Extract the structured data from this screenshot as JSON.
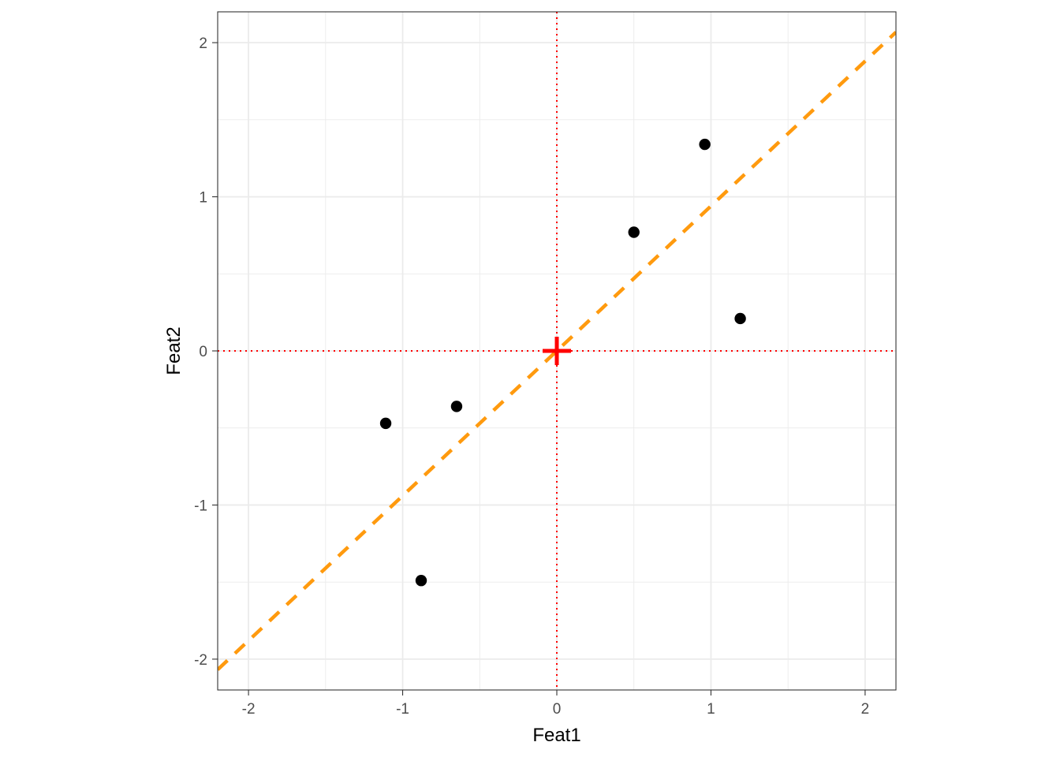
{
  "chart_data": {
    "type": "scatter",
    "title": "",
    "xlabel": "Feat1",
    "ylabel": "Feat2",
    "xlim": [
      -2.2,
      2.2
    ],
    "ylim": [
      -2.2,
      2.2
    ],
    "x_ticks": [
      -2,
      -1,
      0,
      1,
      2
    ],
    "y_ticks": [
      -2,
      -1,
      0,
      1,
      2
    ],
    "x_tick_labels": [
      "-2",
      "-1",
      "0",
      "1",
      "2"
    ],
    "y_tick_labels": [
      "-2",
      "-1",
      "0",
      "1",
      "2"
    ],
    "grid": true,
    "points": [
      {
        "x": -1.11,
        "y": -0.47
      },
      {
        "x": -0.65,
        "y": -0.36
      },
      {
        "x": -0.88,
        "y": -1.49
      },
      {
        "x": 0.5,
        "y": 0.77
      },
      {
        "x": 0.96,
        "y": 1.34
      },
      {
        "x": 1.19,
        "y": 0.21
      }
    ],
    "reference_line": {
      "style": "dashed",
      "color": "#ff9a0e",
      "slope": 0.94,
      "intercept": 0
    },
    "center_marker": {
      "shape": "plus",
      "x": 0,
      "y": 0,
      "color": "#ff0000"
    },
    "crosshair_lines": {
      "x": 0,
      "y": 0,
      "style": "dotted",
      "color": "#ff0000"
    },
    "colors": {
      "points": "#000000",
      "panel_border": "#333333",
      "grid": "#ebebeb"
    }
  }
}
